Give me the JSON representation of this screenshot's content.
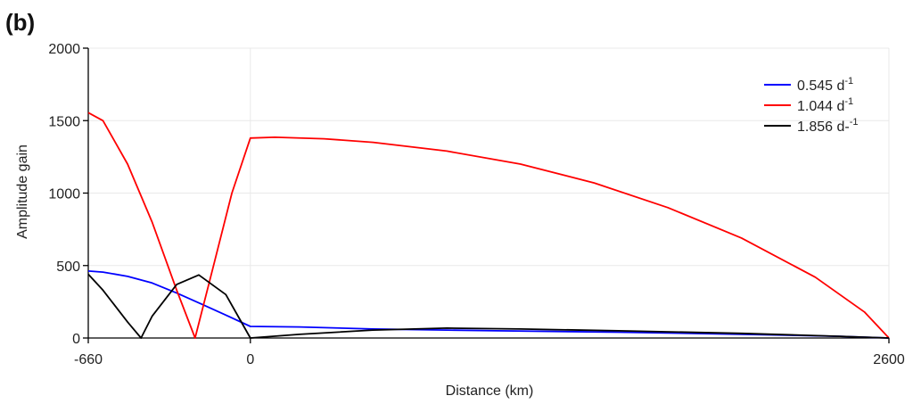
{
  "chart_data": {
    "type": "line",
    "panel_label": "(b)",
    "xlabel": "Distance (km)",
    "ylabel": "Amplitude gain",
    "xlim": [
      -660,
      2600
    ],
    "ylim": [
      0,
      2000
    ],
    "xticks": [
      -660,
      0,
      2600
    ],
    "yticks": [
      0,
      500,
      1000,
      1500,
      2000
    ],
    "grid": true,
    "legend_position": "top-right",
    "series": [
      {
        "name": "0.545 d",
        "name_sup": "-1",
        "color": "#0000ff",
        "points": [
          [
            -660,
            462
          ],
          [
            -600,
            455
          ],
          [
            -500,
            425
          ],
          [
            -400,
            380
          ],
          [
            -300,
            310
          ],
          [
            -200,
            235
          ],
          [
            -100,
            158
          ],
          [
            0,
            80
          ],
          [
            200,
            76
          ],
          [
            500,
            62
          ],
          [
            1000,
            50
          ],
          [
            1500,
            40
          ],
          [
            2000,
            26
          ],
          [
            2400,
            12
          ],
          [
            2600,
            0
          ]
        ]
      },
      {
        "name": "1.044 d",
        "name_sup": "-1",
        "color": "#ff0000",
        "points": [
          [
            -660,
            1555
          ],
          [
            -600,
            1500
          ],
          [
            -500,
            1200
          ],
          [
            -400,
            800
          ],
          [
            -300,
            330
          ],
          [
            -225,
            0
          ],
          [
            -150,
            500
          ],
          [
            -75,
            1000
          ],
          [
            0,
            1380
          ],
          [
            100,
            1385
          ],
          [
            300,
            1375
          ],
          [
            500,
            1350
          ],
          [
            800,
            1290
          ],
          [
            1100,
            1200
          ],
          [
            1400,
            1070
          ],
          [
            1700,
            900
          ],
          [
            2000,
            690
          ],
          [
            2300,
            420
          ],
          [
            2500,
            180
          ],
          [
            2600,
            0
          ]
        ]
      },
      {
        "name": "1.856 d-",
        "name_sup": "-1",
        "color": "#000000",
        "points": [
          [
            -660,
            440
          ],
          [
            -600,
            330
          ],
          [
            -500,
            110
          ],
          [
            -445,
            0
          ],
          [
            -400,
            150
          ],
          [
            -300,
            370
          ],
          [
            -210,
            435
          ],
          [
            -100,
            300
          ],
          [
            -40,
            120
          ],
          [
            0,
            0
          ],
          [
            200,
            25
          ],
          [
            500,
            55
          ],
          [
            800,
            68
          ],
          [
            1100,
            62
          ],
          [
            1500,
            50
          ],
          [
            2000,
            32
          ],
          [
            2400,
            12
          ],
          [
            2600,
            0
          ]
        ]
      }
    ]
  }
}
